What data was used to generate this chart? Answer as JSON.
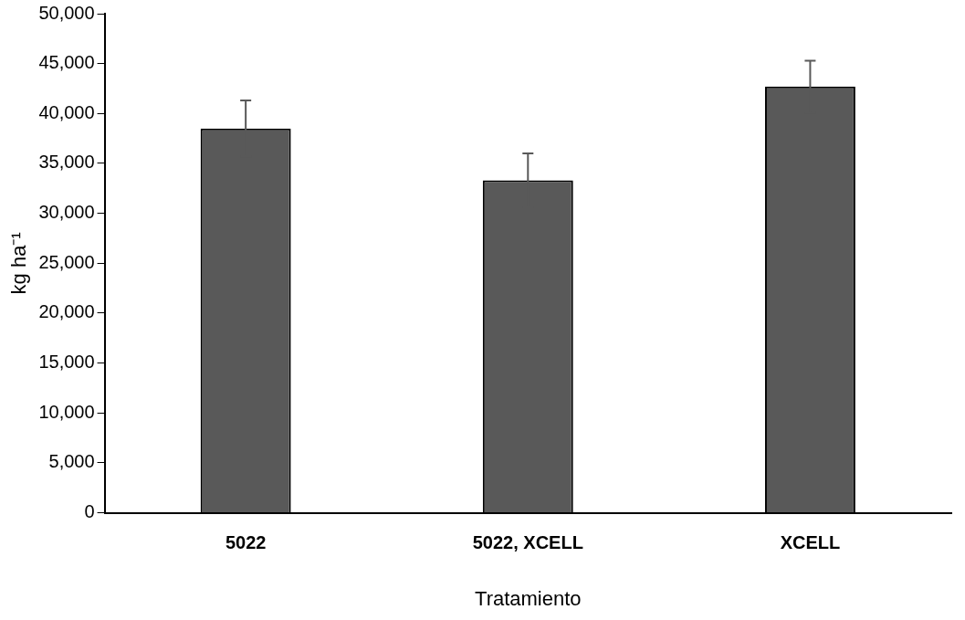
{
  "chart_data": {
    "type": "bar",
    "xlabel": "Tratamiento",
    "ylabel": "kg ha⁻¹",
    "categories": [
      "5022",
      "5022, XCELL",
      "XCELL"
    ],
    "values": [
      38500,
      33300,
      42700
    ],
    "errors": [
      2800,
      2700,
      2600
    ],
    "color": "#595959",
    "ylim": [
      0,
      50000
    ],
    "yticks": [
      {
        "value": 0,
        "label": "0"
      },
      {
        "value": 5000,
        "label": "5,000"
      },
      {
        "value": 10000,
        "label": "10,000"
      },
      {
        "value": 15000,
        "label": "15,000"
      },
      {
        "value": 20000,
        "label": "20,000"
      },
      {
        "value": 25000,
        "label": "25,000"
      },
      {
        "value": 30000,
        "label": "30,000"
      },
      {
        "value": 35000,
        "label": "35,000"
      },
      {
        "value": 40000,
        "label": "40,000"
      },
      {
        "value": 45000,
        "label": "45,000"
      },
      {
        "value": 50000,
        "label": "50,000"
      }
    ],
    "grid": false,
    "legend": false
  }
}
